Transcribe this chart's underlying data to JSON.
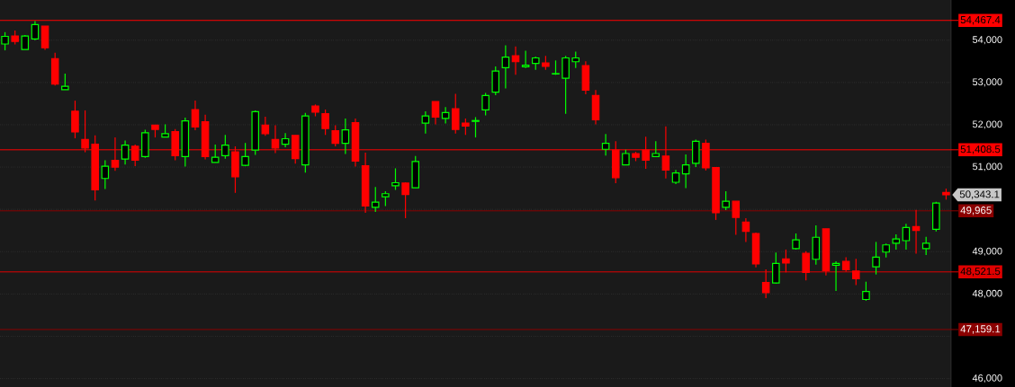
{
  "chart_data": {
    "type": "candlestick",
    "categories": [
      null,
      null,
      null,
      null,
      null,
      null,
      null,
      null,
      null,
      null,
      null,
      null,
      null,
      null,
      null,
      null,
      null,
      null,
      null,
      null,
      null,
      null,
      null,
      null,
      null,
      null,
      null,
      null,
      null,
      null,
      null,
      null,
      null,
      null,
      null,
      null,
      null,
      null,
      null,
      null,
      null,
      null,
      null,
      null,
      null,
      null,
      null,
      null,
      null,
      null,
      null,
      null,
      null,
      null,
      null,
      null,
      null,
      null,
      null,
      null,
      null,
      null,
      null,
      null,
      null,
      null,
      null,
      null,
      null,
      null,
      null,
      null,
      null,
      null,
      null,
      null,
      null,
      null,
      null,
      null,
      null,
      null,
      null,
      null,
      null,
      null,
      null,
      null,
      null,
      null,
      null,
      null,
      null,
      null,
      null
    ],
    "ohlc": [
      [
        53910,
        54190,
        53760,
        54090
      ],
      [
        54100,
        54230,
        53900,
        53970
      ],
      [
        53780,
        54120,
        53780,
        54100
      ],
      [
        54030,
        54450,
        54000,
        54370
      ],
      [
        54330,
        54330,
        53770,
        53820
      ],
      [
        53560,
        53700,
        52930,
        52960
      ],
      [
        52830,
        53210,
        52830,
        52910
      ],
      [
        52320,
        52570,
        51680,
        51830
      ],
      [
        51650,
        52340,
        51350,
        51450
      ],
      [
        51540,
        51750,
        50210,
        50460
      ],
      [
        50730,
        51160,
        50480,
        51020
      ],
      [
        51160,
        51700,
        50910,
        51000
      ],
      [
        51190,
        51630,
        51060,
        51520
      ],
      [
        51490,
        51530,
        51020,
        51160
      ],
      [
        51250,
        51880,
        51220,
        51810
      ],
      [
        51990,
        51990,
        51700,
        51890
      ],
      [
        51710,
        52010,
        51710,
        51790
      ],
      [
        51840,
        51900,
        51160,
        51270
      ],
      [
        51250,
        52170,
        51010,
        52090
      ],
      [
        52360,
        52570,
        51870,
        51950
      ],
      [
        52070,
        52240,
        51180,
        51250
      ],
      [
        51110,
        51530,
        51110,
        51230
      ],
      [
        51270,
        51760,
        51200,
        51520
      ],
      [
        51360,
        51490,
        50390,
        50770
      ],
      [
        51040,
        51570,
        51020,
        51250
      ],
      [
        51400,
        52340,
        51290,
        52310
      ],
      [
        51990,
        52190,
        51740,
        51790
      ],
      [
        51650,
        51990,
        51330,
        51450
      ],
      [
        51540,
        51800,
        51470,
        51670
      ],
      [
        51750,
        51750,
        51080,
        51200
      ],
      [
        51050,
        52280,
        50870,
        52210
      ],
      [
        52440,
        52480,
        52200,
        52300
      ],
      [
        52260,
        52360,
        51760,
        51910
      ],
      [
        51860,
        51990,
        51490,
        51560
      ],
      [
        51560,
        52150,
        51310,
        51880
      ],
      [
        52050,
        52150,
        51010,
        51140
      ],
      [
        51030,
        51340,
        49920,
        50080
      ],
      [
        50050,
        50530,
        49940,
        50170
      ],
      [
        50300,
        50430,
        50080,
        50370
      ],
      [
        50560,
        50970,
        50460,
        50630
      ],
      [
        50620,
        50640,
        49790,
        50350
      ],
      [
        50510,
        51260,
        50510,
        51130
      ],
      [
        52040,
        52320,
        51790,
        52210
      ],
      [
        52550,
        52550,
        52010,
        52180
      ],
      [
        52150,
        52420,
        52030,
        52290
      ],
      [
        52380,
        52730,
        51790,
        51890
      ],
      [
        52040,
        52150,
        51760,
        51970
      ],
      [
        52080,
        52180,
        51700,
        52100
      ],
      [
        52350,
        52750,
        52220,
        52690
      ],
      [
        52770,
        53380,
        52700,
        53270
      ],
      [
        53350,
        53880,
        52860,
        53600
      ],
      [
        53630,
        53850,
        53180,
        53490
      ],
      [
        53370,
        53750,
        53340,
        53410
      ],
      [
        53450,
        53610,
        53300,
        53580
      ],
      [
        53460,
        53630,
        53300,
        53380
      ],
      [
        53200,
        53520,
        53180,
        53210
      ],
      [
        53100,
        53630,
        52260,
        53580
      ],
      [
        53490,
        53730,
        53340,
        53580
      ],
      [
        53400,
        53500,
        52720,
        52820
      ],
      [
        52690,
        52820,
        52010,
        52120
      ],
      [
        51420,
        51780,
        51270,
        51560
      ],
      [
        51400,
        51610,
        50620,
        50750
      ],
      [
        51050,
        51410,
        51050,
        51320
      ],
      [
        51320,
        51360,
        51140,
        51230
      ],
      [
        51400,
        51720,
        50960,
        51160
      ],
      [
        51250,
        51610,
        51250,
        51320
      ],
      [
        51260,
        51960,
        50730,
        50930
      ],
      [
        50640,
        50930,
        50600,
        50860
      ],
      [
        50840,
        51300,
        50500,
        51050
      ],
      [
        51090,
        51650,
        51000,
        51610
      ],
      [
        51560,
        51650,
        50920,
        50980
      ],
      [
        50990,
        50990,
        49750,
        49920
      ],
      [
        50050,
        50430,
        49980,
        50190
      ],
      [
        50190,
        50190,
        49400,
        49810
      ],
      [
        49700,
        49790,
        49230,
        49480
      ],
      [
        49430,
        49450,
        48630,
        48710
      ],
      [
        48270,
        48580,
        47900,
        48030
      ],
      [
        48260,
        48980,
        48240,
        48720
      ],
      [
        48830,
        49050,
        48510,
        48730
      ],
      [
        49070,
        49430,
        49050,
        49280
      ],
      [
        48960,
        49010,
        48320,
        48510
      ],
      [
        48820,
        49620,
        48690,
        49340
      ],
      [
        49540,
        49540,
        48440,
        48550
      ],
      [
        48680,
        48770,
        48070,
        48720
      ],
      [
        48770,
        48870,
        48530,
        48570
      ],
      [
        48540,
        48830,
        48210,
        48360
      ],
      [
        47870,
        48290,
        47840,
        48060
      ],
      [
        48640,
        49230,
        48460,
        48870
      ],
      [
        48990,
        49190,
        48860,
        49160
      ],
      [
        49200,
        49410,
        49050,
        49300
      ],
      [
        49260,
        49660,
        49050,
        49570
      ],
      [
        49590,
        49990,
        48950,
        49500
      ],
      [
        49070,
        49350,
        48920,
        49200
      ],
      [
        49530,
        50180,
        49480,
        50150
      ],
      [
        50400,
        50490,
        50230,
        50343.1
      ]
    ],
    "ylim": [
      45800,
      54950
    ],
    "yticks": [
      {
        "value": 46000,
        "label": "46,000"
      },
      {
        "value": 47000,
        "label": null
      },
      {
        "value": 48000,
        "label": "48,000"
      },
      {
        "value": 49000,
        "label": "49,000"
      },
      {
        "value": 50000,
        "label": null
      },
      {
        "value": 51000,
        "label": "51,000"
      },
      {
        "value": 52000,
        "label": "52,000"
      },
      {
        "value": 53000,
        "label": "53,000"
      },
      {
        "value": 54000,
        "label": "54,000"
      }
    ],
    "grid": "y",
    "tick_labels": "y",
    "ref_lines": [
      {
        "axis": "y",
        "value": 54467.4,
        "label": "54,467.4",
        "color": "#ff0000"
      },
      {
        "axis": "y",
        "value": 51408.5,
        "label": "51,408.5",
        "color": "#ff0000"
      },
      {
        "axis": "y",
        "value": 49965,
        "label": "49,965",
        "color": "#8b0000"
      },
      {
        "axis": "y",
        "value": 48521.5,
        "label": "48,521.5",
        "color": "#e00000"
      },
      {
        "axis": "y",
        "value": 47159.1,
        "label": "47,159.1",
        "color": "#8b0000"
      }
    ],
    "annotations": [
      "50,343.1"
    ]
  }
}
